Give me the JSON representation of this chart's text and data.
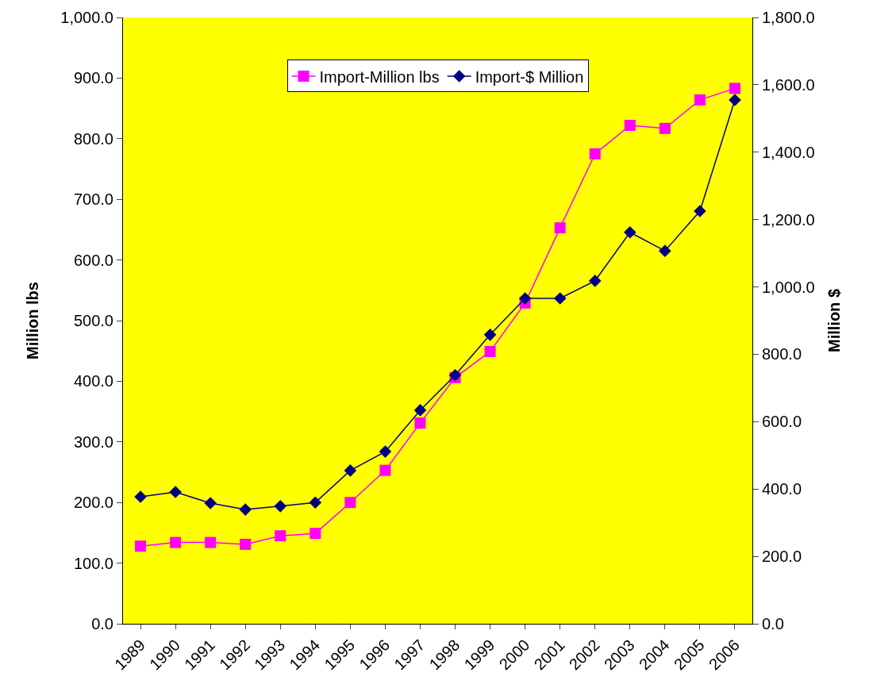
{
  "chart_data": {
    "type": "line",
    "categories": [
      "1989",
      "1990",
      "1991",
      "1992",
      "1993",
      "1994",
      "1995",
      "1996",
      "1997",
      "1998",
      "1999",
      "2000",
      "2001",
      "2002",
      "2003",
      "2004",
      "2005",
      "2006"
    ],
    "series": [
      {
        "name": "Import-Million lbs",
        "color": "#ff00ff",
        "marker": "square",
        "values": [
          128,
          134,
          134,
          131,
          145,
          149,
          200,
          253,
          331,
          406,
          449,
          529,
          653,
          775,
          822,
          817,
          864,
          883
        ]
      },
      {
        "name": "Import-$ Million",
        "color": "#000080",
        "marker": "diamond",
        "axis": "y2",
        "values": [
          377,
          391,
          358,
          339,
          349,
          360,
          455,
          511,
          634,
          738,
          858,
          966,
          966,
          1018,
          1162,
          1107,
          1225,
          1555
        ]
      }
    ],
    "ylabel": "Million lbs",
    "y2label": "Million $",
    "ylim": [
      0,
      1000
    ],
    "yticks": [
      {
        "value": 0,
        "label": "0.0"
      },
      {
        "value": 100,
        "label": "100.0"
      },
      {
        "value": 200,
        "label": "200.0"
      },
      {
        "value": 300,
        "label": "300.0"
      },
      {
        "value": 400,
        "label": "400.0"
      },
      {
        "value": 500,
        "label": "500.0"
      },
      {
        "value": 600,
        "label": "600.0"
      },
      {
        "value": 700,
        "label": "700.0"
      },
      {
        "value": 800,
        "label": "800.0"
      },
      {
        "value": 900,
        "label": "900.0"
      },
      {
        "value": 1000,
        "label": "1,000.0"
      }
    ],
    "y2lim": [
      0,
      1800
    ],
    "y2ticks": [
      {
        "value": 0,
        "label": "0.0"
      },
      {
        "value": 200,
        "label": "200.0"
      },
      {
        "value": 400,
        "label": "400.0"
      },
      {
        "value": 600,
        "label": "600.0"
      },
      {
        "value": 800,
        "label": "800.0"
      },
      {
        "value": 1000,
        "label": "1,000.0"
      },
      {
        "value": 1200,
        "label": "1,200.0"
      },
      {
        "value": 1400,
        "label": "1,400.0"
      },
      {
        "value": 1600,
        "label": "1,600.0"
      },
      {
        "value": 1800,
        "label": "1,800.0"
      }
    ],
    "grid": false,
    "legend": "top",
    "line_style": "solid"
  }
}
